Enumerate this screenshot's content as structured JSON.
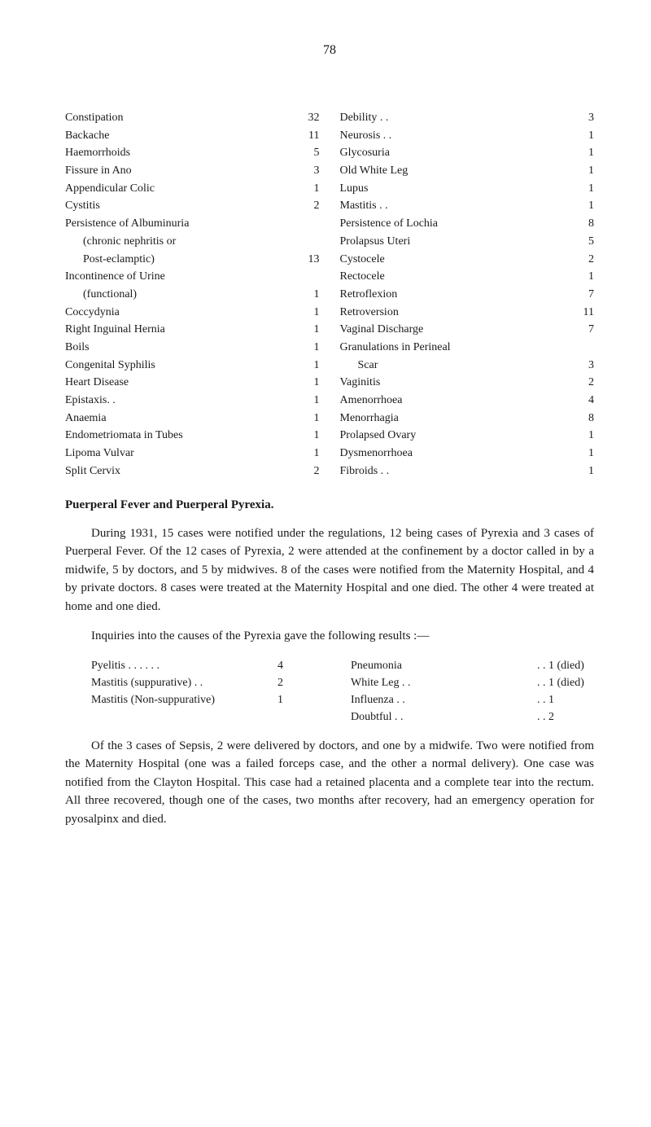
{
  "page_number": "78",
  "left_col": [
    {
      "label": "Constipation",
      "value": "32",
      "indent": false,
      "dots": ". .      . ."
    },
    {
      "label": "Backache",
      "value": "11",
      "indent": false,
      "dots": ". .      . ."
    },
    {
      "label": "Haemorrhoids",
      "value": "5",
      "indent": false,
      "dots": ". .      . ."
    },
    {
      "label": "Fissure in Ano",
      "value": "3",
      "indent": false,
      "dots": ". .      . ."
    },
    {
      "label": "Appendicular Colic",
      "value": "1",
      "indent": false,
      "dots": ". ."
    },
    {
      "label": "Cystitis",
      "value": "2",
      "indent": false,
      "dots": ". .      . .      . ."
    },
    {
      "label": "Persistence of Albuminuria",
      "value": "",
      "indent": false,
      "dots": ""
    },
    {
      "label": "(chronic nephritis or",
      "value": "",
      "indent": true,
      "dots": ""
    },
    {
      "label": "Post-eclamptic)",
      "value": "13",
      "indent": true,
      "dots": ". ."
    },
    {
      "label": "Incontinence of Urine",
      "value": "",
      "indent": false,
      "dots": ""
    },
    {
      "label": "(functional)",
      "value": "1",
      "indent": true,
      "dots": ". .      . ."
    },
    {
      "label": "Coccydynia",
      "value": "1",
      "indent": false,
      "dots": ". .      . ."
    },
    {
      "label": "Right Inguinal Hernia",
      "value": "1",
      "indent": false,
      "dots": ""
    },
    {
      "label": "Boils",
      "value": "1",
      "indent": false,
      "dots": ". .      . .      . ."
    },
    {
      "label": "Congenital Syphilis",
      "value": "1",
      "indent": false,
      "dots": ". ."
    },
    {
      "label": "Heart Disease",
      "value": "1",
      "indent": false,
      "dots": ". .      . ."
    },
    {
      "label": "Epistaxis. .",
      "value": "1",
      "indent": false,
      "dots": ". .      . ."
    },
    {
      "label": "Anaemia",
      "value": "1",
      "indent": false,
      "dots": ". .      . ."
    },
    {
      "label": "Endometriomata in Tubes",
      "value": "1",
      "indent": false,
      "dots": ""
    },
    {
      "label": "Lipoma Vulvar",
      "value": "1",
      "indent": false,
      "dots": ". .      . ."
    },
    {
      "label": "Split Cervix",
      "value": "2",
      "indent": false,
      "dots": ". .      . ."
    }
  ],
  "right_col": [
    {
      "label": "Debility . .",
      "value": "3",
      "indent": false,
      "dots": ". .      . ."
    },
    {
      "label": "Neurosis . .",
      "value": "1",
      "indent": false,
      "dots": ". .      . ."
    },
    {
      "label": "Glycosuria",
      "value": "1",
      "indent": false,
      "dots": ". .      . ."
    },
    {
      "label": "Old White Leg",
      "value": "1",
      "indent": false,
      "dots": ". .      . ."
    },
    {
      "label": "Lupus",
      "value": "1",
      "indent": false,
      "dots": ". .      . .      . ."
    },
    {
      "label": "Mastitis . .",
      "value": "1",
      "indent": false,
      "dots": ". .      . ."
    },
    {
      "label": "Persistence of Lochia",
      "value": "8",
      "indent": false,
      "dots": ". ."
    },
    {
      "label": "Prolapsus Uteri",
      "value": "5",
      "indent": false,
      "dots": ". ."
    },
    {
      "label": "Cystocele",
      "value": "2",
      "indent": false,
      "dots": ". .      . ."
    },
    {
      "label": "Rectocele",
      "value": "1",
      "indent": false,
      "dots": ". .      . ."
    },
    {
      "label": "Retroflexion",
      "value": "7",
      "indent": false,
      "dots": ". .      . ."
    },
    {
      "label": "Retroversion",
      "value": "11",
      "indent": false,
      "dots": ". .      . ."
    },
    {
      "label": "Vaginal Discharge",
      "value": "7",
      "indent": false,
      "dots": ". ."
    },
    {
      "label": "Granulations in Perineal",
      "value": "",
      "indent": false,
      "dots": ""
    },
    {
      "label": "Scar",
      "value": "3",
      "indent": true,
      "dots": ". .      . .      . ."
    },
    {
      "label": "Vaginitis",
      "value": "2",
      "indent": false,
      "dots": ". .      . ."
    },
    {
      "label": "Amenorrhoea",
      "value": "4",
      "indent": false,
      "dots": ". .      . ."
    },
    {
      "label": "Menorrhagia",
      "value": "8",
      "indent": false,
      "dots": ". .      . ."
    },
    {
      "label": "Prolapsed Ovary",
      "value": "1",
      "indent": false,
      "dots": ". ."
    },
    {
      "label": "Dysmenorrhoea",
      "value": "1",
      "indent": false,
      "dots": ". ."
    },
    {
      "label": "Fibroids . .",
      "value": "1",
      "indent": false,
      "dots": ". .      . ."
    }
  ],
  "section_title": "Puerperal Fever and Puerperal Pyrexia.",
  "para1": "During 1931, 15 cases were notified under the regulations, 12 being cases of Pyrexia and 3 cases of Puerperal Fever. Of the 12 cases of Pyrexia, 2 were attended at the confinement by a doctor called in by a midwife, 5 by doctors, and 5 by midwives. 8 of the cases were notified from the Maternity Hospital, and 4 by private doctors. 8 cases were treated at the Maternity Hospital and one died. The other 4 were treated at home and one died.",
  "para2": "Inquiries into the causes of the Pyrexia gave the following results :—",
  "inquiry_left": [
    {
      "label": "Pyelitis  . .      . .      . .",
      "value": "4"
    },
    {
      "label": "Mastitis (suppurative) . .",
      "value": "2"
    },
    {
      "label": "Mastitis (Non-suppurative)",
      "value": "1"
    }
  ],
  "inquiry_right": [
    {
      "label": "Pneumonia",
      "value": ". . 1 (died)"
    },
    {
      "label": "White Leg . .",
      "value": ". . 1 (died)"
    },
    {
      "label": "Influenza   . .",
      "value": ". . 1"
    },
    {
      "label": "Doubtful   . .",
      "value": ". . 2"
    }
  ],
  "para3": "Of the 3 cases of Sepsis, 2 were delivered by doctors, and one by a midwife. Two were notified from the Maternity Hospital (one was a failed forceps case, and the other a normal delivery). One case was notified from the Clayton Hospital. This case had a retained placenta and a complete tear into the rectum. All three recovered, though one of the cases, two months after recovery, had an emergency operation for pyosalpinx and died."
}
